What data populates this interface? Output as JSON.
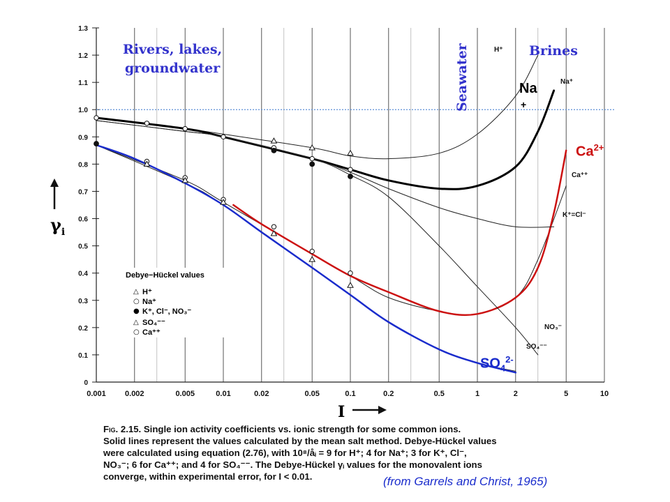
{
  "chart_data": {
    "type": "line",
    "x_scale": "log",
    "xlim": [
      0.001,
      10
    ],
    "ylim": [
      0,
      1.3
    ],
    "x_ticks": [
      0.001,
      0.002,
      0.005,
      0.01,
      0.02,
      0.05,
      0.1,
      0.2,
      0.5,
      1,
      2,
      5,
      10
    ],
    "x_tick_labels": [
      "0.001",
      "0.002",
      "0.005",
      "0.01",
      "0.02",
      "0.05",
      "0.1",
      "0.2",
      "0.5",
      "1",
      "2",
      "5",
      "10"
    ],
    "y_ticks": [
      0,
      0.1,
      0.2,
      0.3,
      0.4,
      0.5,
      0.6,
      0.7,
      0.8,
      0.9,
      1.0,
      1.1,
      1.2,
      1.3
    ],
    "y_tick_labels": [
      "0",
      "0.1",
      "0.2",
      "0.3",
      "0.4",
      "0.5",
      "0.6",
      "0.7",
      "0.8",
      "0.9",
      "1.0",
      "1.1",
      "1.2",
      "1.3"
    ],
    "xlabel": "I",
    "ylabel": "γi",
    "grid": true,
    "reference_line_y": 1.0,
    "series": [
      {
        "name": "H+",
        "color": "#222222",
        "width": 1,
        "x": [
          0.001,
          0.005,
          0.01,
          0.05,
          0.1,
          0.2,
          0.5,
          1,
          2,
          3
        ],
        "y": [
          0.97,
          0.93,
          0.91,
          0.86,
          0.83,
          0.82,
          0.84,
          0.91,
          1.05,
          1.2
        ]
      },
      {
        "name": "Na+",
        "color": "#000000",
        "width": 3,
        "x": [
          0.001,
          0.005,
          0.01,
          0.05,
          0.1,
          0.2,
          0.5,
          1,
          2,
          3,
          4
        ],
        "y": [
          0.97,
          0.93,
          0.9,
          0.82,
          0.78,
          0.74,
          0.71,
          0.72,
          0.79,
          0.92,
          1.07
        ]
      },
      {
        "name": "Ca++",
        "color": "#222222",
        "width": 1,
        "x": [
          0.001,
          0.005,
          0.01,
          0.05,
          0.1,
          0.2,
          0.5,
          1,
          2,
          3,
          5
        ],
        "y": [
          0.87,
          0.74,
          0.66,
          0.47,
          0.39,
          0.31,
          0.26,
          0.25,
          0.31,
          0.45,
          0.72
        ]
      },
      {
        "name": "Ca2+",
        "color": "#cc1111",
        "width": 2.5,
        "x": [
          0.012,
          0.02,
          0.05,
          0.1,
          0.2,
          0.5,
          1,
          2,
          3,
          4,
          5
        ],
        "y": [
          0.65,
          0.58,
          0.47,
          0.39,
          0.33,
          0.26,
          0.25,
          0.31,
          0.42,
          0.62,
          0.85
        ]
      },
      {
        "name": "K+=Cl−",
        "color": "#222222",
        "width": 1,
        "x": [
          0.001,
          0.005,
          0.01,
          0.05,
          0.1,
          0.2,
          0.5,
          1,
          2,
          4
        ],
        "y": [
          0.96,
          0.92,
          0.9,
          0.82,
          0.77,
          0.71,
          0.64,
          0.6,
          0.57,
          0.57
        ]
      },
      {
        "name": "NO3−",
        "color": "#222222",
        "width": 1,
        "x": [
          0.001,
          0.005,
          0.01,
          0.05,
          0.1,
          0.2,
          0.5,
          1,
          2,
          3
        ],
        "y": [
          0.96,
          0.92,
          0.9,
          0.82,
          0.76,
          0.68,
          0.5,
          0.35,
          0.2,
          0.1
        ]
      },
      {
        "name": "SO4−−",
        "color": "#222222",
        "width": 1,
        "x": [
          0.001,
          0.005,
          0.01,
          0.05,
          0.1,
          0.2,
          0.5,
          1,
          2
        ],
        "y": [
          0.87,
          0.73,
          0.65,
          0.42,
          0.32,
          0.22,
          0.12,
          0.07,
          0.04
        ]
      },
      {
        "name": "SO42-",
        "color": "#1a2ccc",
        "width": 2.5,
        "x": [
          0.001,
          0.002,
          0.005,
          0.01,
          0.02,
          0.05,
          0.1,
          0.2,
          0.5,
          1,
          2
        ],
        "y": [
          0.87,
          0.82,
          0.73,
          0.65,
          0.55,
          0.42,
          0.32,
          0.22,
          0.12,
          0.07,
          0.035
        ]
      }
    ],
    "markers": [
      {
        "symbol": "circle",
        "x": [
          0.001,
          0.0025,
          0.005,
          0.01,
          0.025,
          0.05,
          0.1
        ],
        "y": [
          0.97,
          0.95,
          0.93,
          0.9,
          0.86,
          0.82,
          0.78
        ]
      },
      {
        "symbol": "filled-circle",
        "x": [
          0.001,
          0.025,
          0.05,
          0.1
        ],
        "y": [
          0.875,
          0.85,
          0.8,
          0.755
        ]
      },
      {
        "symbol": "triangle",
        "x": [
          0.025,
          0.05,
          0.1
        ],
        "y": [
          0.885,
          0.86,
          0.84
        ]
      },
      {
        "symbol": "circle",
        "x": [
          0.0025,
          0.005,
          0.01,
          0.025,
          0.05,
          0.1
        ],
        "y": [
          0.81,
          0.75,
          0.67,
          0.57,
          0.48,
          0.4
        ]
      },
      {
        "symbol": "triangle",
        "x": [
          0.0025,
          0.005,
          0.01,
          0.025,
          0.05,
          0.1
        ],
        "y": [
          0.8,
          0.74,
          0.66,
          0.545,
          0.45,
          0.355
        ]
      }
    ]
  },
  "labels": {
    "region_rivers_line1": "Rivers, lakes,",
    "region_rivers_line2": "groundwater",
    "region_seawater": "Seawater",
    "region_brines": "Brines",
    "ion_na": "Na",
    "ion_na_charge": "+",
    "ion_ca": "Ca",
    "ion_ca_charge": "2+",
    "ion_so4": "SO",
    "ion_so4_sub": "4",
    "ion_so4_charge": "2-",
    "xlabel": "I",
    "ylabel": "γ",
    "ylabel_sub": "i"
  },
  "curve_tags": {
    "h": "H⁺",
    "na": "Na⁺",
    "ca": "Ca⁺⁺",
    "kcl": "K⁺=Cl⁻",
    "no3": "NO₃⁻",
    "so4": "SO₄⁻⁻"
  },
  "legend": {
    "title": "Debye−Hückel values",
    "items": [
      {
        "symbol": "△",
        "label": "H⁺"
      },
      {
        "symbol": "○",
        "label": "Na⁺"
      },
      {
        "symbol": "●",
        "label": "K⁺, Cl⁻, NO₃⁻"
      },
      {
        "symbol": "△",
        "label": "SO₄⁻⁻"
      },
      {
        "symbol": "○",
        "label": "Ca⁺⁺"
      }
    ]
  },
  "caption": {
    "fig": "Fig. 2.15.",
    "line1": "Single ion activity coefficients vs. ionic strength for some common ions.",
    "line2": "Solid lines represent the values calculated by the mean salt method. Debye-Hückel values",
    "line3": "were calculated using equation (2.76), with 10⁸/åᵢ = 9 for H⁺; 4 for Na⁺; 3 for K⁺, Cl⁻,",
    "line4": "NO₃⁻; 6 for Ca⁺⁺; and 4 for SO₄⁻⁻. The Debye-Hückel γᵢ values for the monovalent ions",
    "line5": "converge, within experimental error, for I < 0.01."
  },
  "source": "(from Garrels and Christ, 1965)"
}
